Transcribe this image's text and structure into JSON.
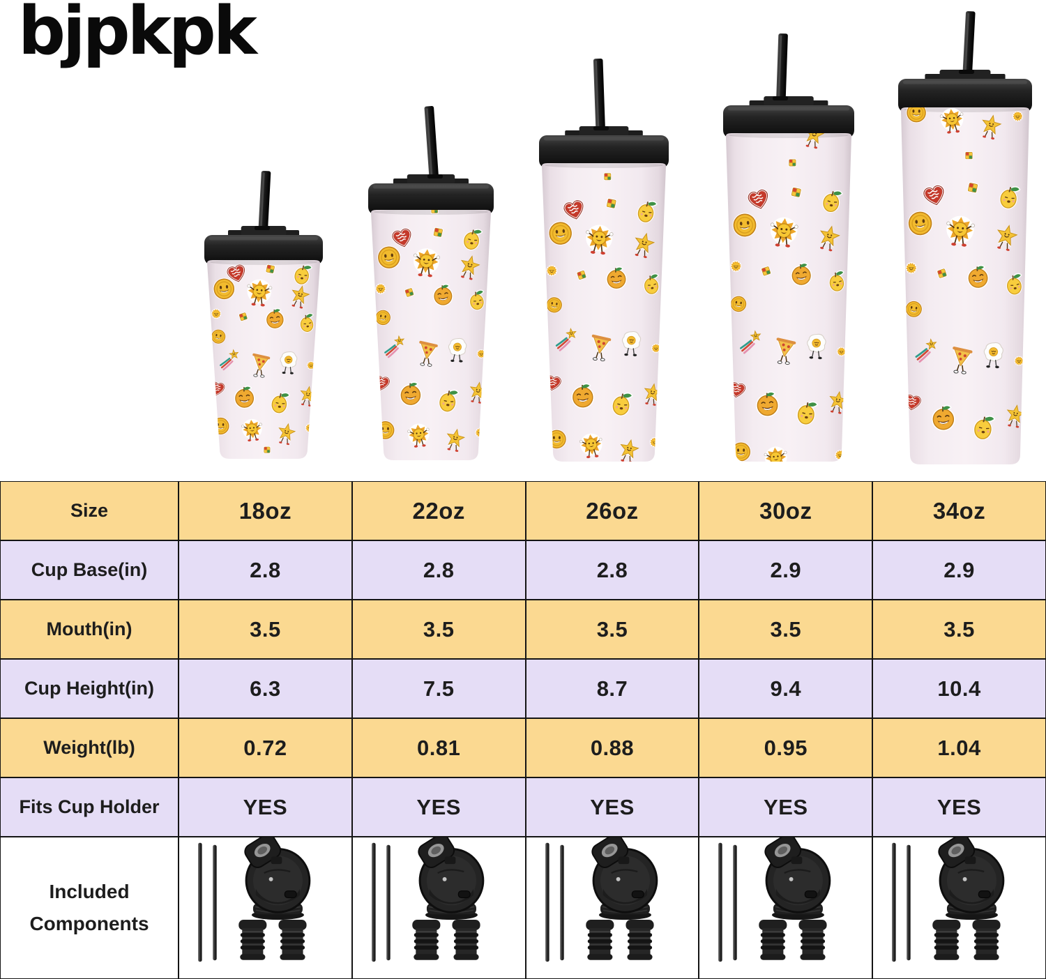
{
  "brand": {
    "logo_text": "bjpkpk"
  },
  "lineup": {
    "description": "five insulated tumblers with straws, smallest to largest",
    "sizes": [
      "18oz",
      "22oz",
      "26oz",
      "30oz",
      "34oz"
    ],
    "cup_color": "#f3eaf0",
    "lid_color": "#1b1b1b",
    "pattern_motifs": [
      "smiley-coin",
      "sun-character",
      "mini-sun",
      "dancing-star",
      "shooting-star",
      "lemon-character",
      "orange-character",
      "heart-sticker",
      "pizza-character",
      "fried-egg-character",
      "toy-cube"
    ]
  },
  "table": {
    "columns": [
      "18oz",
      "22oz",
      "26oz",
      "30oz",
      "34oz"
    ],
    "rows": [
      {
        "label": "Size",
        "values": [
          "18oz",
          "22oz",
          "26oz",
          "30oz",
          "34oz"
        ]
      },
      {
        "label": "Cup Base(in)",
        "values": [
          "2.8",
          "2.8",
          "2.8",
          "2.9",
          "2.9"
        ]
      },
      {
        "label": "Mouth(in)",
        "values": [
          "3.5",
          "3.5",
          "3.5",
          "3.5",
          "3.5"
        ]
      },
      {
        "label": "Cup Height(in)",
        "values": [
          "6.3",
          "7.5",
          "8.7",
          "9.4",
          "10.4"
        ]
      },
      {
        "label": "Weight(lb)",
        "values": [
          "0.72",
          "0.81",
          "0.88",
          "0.95",
          "1.04"
        ]
      },
      {
        "label": "Fits Cup Holder",
        "values": [
          "YES",
          "YES",
          "YES",
          "YES",
          "YES"
        ]
      }
    ],
    "included_row": {
      "label_lines": [
        "Included",
        "Components"
      ],
      "per_size_items": [
        "two-metal-straws",
        "flip-top-lid",
        "two-straw-stoppers"
      ]
    },
    "style": {
      "row_yellow": "#fbd991",
      "row_lavender": "#e5ddf6",
      "border": "#141414",
      "text": "#1d1d1d"
    }
  }
}
